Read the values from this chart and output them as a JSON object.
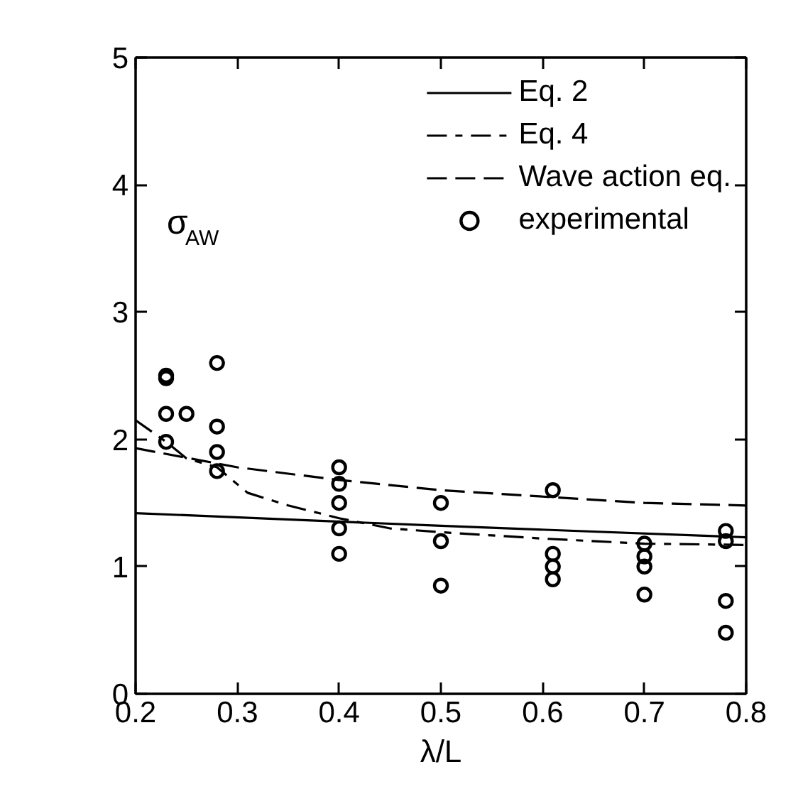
{
  "chart_data": {
    "type": "line",
    "xlabel": "λ/L",
    "ylabel": "σ$_{AW}$",
    "xlim": [
      0.2,
      0.8
    ],
    "ylim": [
      0,
      5
    ],
    "xticks": [
      0.2,
      0.3,
      0.4,
      0.5,
      0.6,
      0.7,
      0.8
    ],
    "yticks": [
      0,
      1,
      2,
      3,
      4,
      5
    ],
    "grid": false,
    "legend": "top right",
    "series": [
      {
        "name": "Eq. 2",
        "line_style": "solid",
        "color": "#000000",
        "x": [
          0.2,
          0.5,
          0.8
        ],
        "values": [
          1.42,
          1.32,
          1.23
        ]
      },
      {
        "name": "Eq. 4",
        "line_style": "dashdot",
        "color": "#000000",
        "x": [
          0.2,
          0.23,
          0.25,
          0.28,
          0.31,
          0.35,
          0.4,
          0.45,
          0.5,
          0.6,
          0.7,
          0.8
        ],
        "values": [
          2.15,
          1.98,
          1.85,
          1.78,
          1.58,
          1.48,
          1.38,
          1.3,
          1.27,
          1.22,
          1.18,
          1.17
        ]
      },
      {
        "name": "Wave action eq.",
        "line_style": "dashed",
        "color": "#000000",
        "x": [
          0.2,
          0.3,
          0.4,
          0.5,
          0.6,
          0.7,
          0.8
        ],
        "values": [
          1.93,
          1.78,
          1.68,
          1.6,
          1.55,
          1.5,
          1.48
        ]
      },
      {
        "name": "experimental",
        "type": "scatter",
        "marker": "circle",
        "color": "#000000",
        "x": [
          0.23,
          0.23,
          0.23,
          0.23,
          0.25,
          0.28,
          0.28,
          0.28,
          0.28,
          0.4,
          0.4,
          0.4,
          0.4,
          0.4,
          0.5,
          0.5,
          0.5,
          0.61,
          0.61,
          0.61,
          0.61,
          0.7,
          0.7,
          0.7,
          0.7,
          0.78,
          0.78,
          0.78,
          0.78
        ],
        "values": [
          2.5,
          2.48,
          2.2,
          1.98,
          2.2,
          2.6,
          2.1,
          1.9,
          1.75,
          1.78,
          1.65,
          1.5,
          1.3,
          1.1,
          1.5,
          1.2,
          0.85,
          1.6,
          1.1,
          1.0,
          0.9,
          1.18,
          1.08,
          1.0,
          0.78,
          1.28,
          1.2,
          0.73,
          0.48
        ]
      }
    ]
  }
}
